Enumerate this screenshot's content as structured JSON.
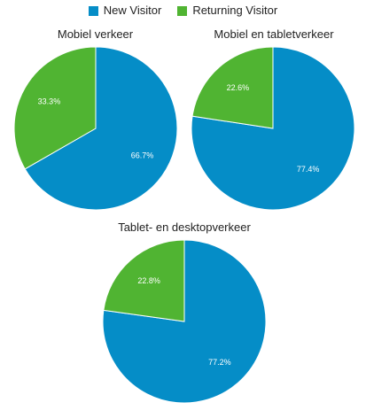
{
  "legend": [
    {
      "name": "New Visitor",
      "color": "#058DC7"
    },
    {
      "name": "Returning Visitor",
      "color": "#50B432"
    }
  ],
  "chart_data": [
    {
      "type": "pie",
      "title": "Mobiel verkeer",
      "categories": [
        "New Visitor",
        "Returning Visitor"
      ],
      "values": [
        66.7,
        33.3
      ],
      "labels": [
        "66.7%",
        "33.3%"
      ],
      "colors": [
        "#058DC7",
        "#50B432"
      ]
    },
    {
      "type": "pie",
      "title": "Mobiel en tabletverkeer",
      "categories": [
        "New Visitor",
        "Returning Visitor"
      ],
      "values": [
        77.4,
        22.6
      ],
      "labels": [
        "77.4%",
        "22.6%"
      ],
      "colors": [
        "#058DC7",
        "#50B432"
      ]
    },
    {
      "type": "pie",
      "title": "Tablet- en desktopverkeer",
      "categories": [
        "New Visitor",
        "Returning Visitor"
      ],
      "values": [
        77.2,
        22.8
      ],
      "labels": [
        "77.2%",
        "22.8%"
      ],
      "colors": [
        "#058DC7",
        "#50B432"
      ]
    }
  ]
}
